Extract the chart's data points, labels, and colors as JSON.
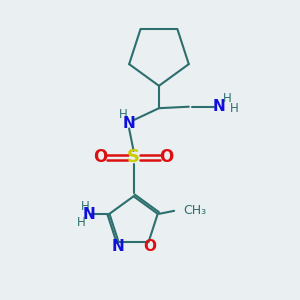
{
  "bg_color": "#eaeff1",
  "atom_colors": {
    "C": "#2d6e6e",
    "N": "#1010dd",
    "O": "#dd1010",
    "S": "#cccc00",
    "H": "#2d6e6e"
  }
}
